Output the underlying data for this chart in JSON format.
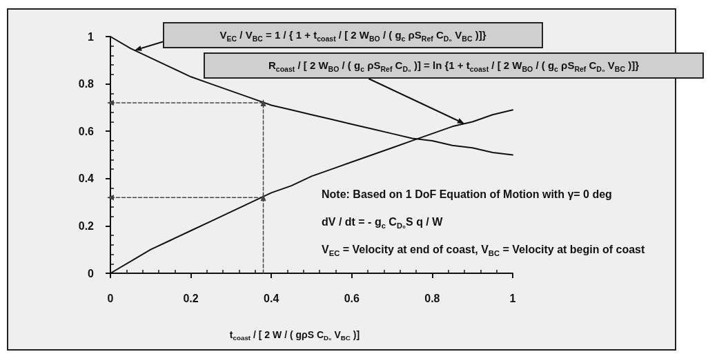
{
  "chart_data": {
    "type": "line",
    "xlabel": "t$_{coast}$ / [ 2 W / ( gρS C$_{D₀}$ V$_{BC}$ )]",
    "xlim": [
      0,
      1
    ],
    "ylim": [
      0,
      1
    ],
    "xticks": [
      0,
      {
        "value": 0.04,
        "label": null
      },
      {
        "value": 0.08,
        "label": null
      },
      {
        "value": 0.12,
        "label": null
      },
      {
        "value": 0.16,
        "label": null
      },
      0.2,
      {
        "value": 0.24,
        "label": null
      },
      {
        "value": 0.28,
        "label": null
      },
      {
        "value": 0.32,
        "label": null
      },
      {
        "value": 0.36,
        "label": null
      },
      0.4,
      {
        "value": 0.44,
        "label": null
      },
      {
        "value": 0.48,
        "label": null
      },
      {
        "value": 0.52,
        "label": null
      },
      {
        "value": 0.56,
        "label": null
      },
      0.6,
      {
        "value": 0.64,
        "label": null
      },
      {
        "value": 0.68,
        "label": null
      },
      {
        "value": 0.72,
        "label": null
      },
      {
        "value": 0.76,
        "label": null
      },
      0.8,
      {
        "value": 0.84,
        "label": null
      },
      {
        "value": 0.88,
        "label": null
      },
      {
        "value": 0.92,
        "label": null
      },
      {
        "value": 0.96,
        "label": null
      },
      1
    ],
    "yticks": [
      0,
      {
        "value": 0.04,
        "label": null
      },
      {
        "value": 0.08,
        "label": null
      },
      {
        "value": 0.12,
        "label": null
      },
      {
        "value": 0.16,
        "label": null
      },
      0.2,
      {
        "value": 0.24,
        "label": null
      },
      {
        "value": 0.28,
        "label": null
      },
      {
        "value": 0.32,
        "label": null
      },
      {
        "value": 0.36,
        "label": null
      },
      0.4,
      {
        "value": 0.44,
        "label": null
      },
      {
        "value": 0.48,
        "label": null
      },
      {
        "value": 0.52,
        "label": null
      },
      {
        "value": 0.56,
        "label": null
      },
      0.6,
      {
        "value": 0.64,
        "label": null
      },
      {
        "value": 0.68,
        "label": null
      },
      {
        "value": 0.72,
        "label": null
      },
      {
        "value": 0.76,
        "label": null
      },
      0.8,
      {
        "value": 0.84,
        "label": null
      },
      {
        "value": 0.88,
        "label": null
      },
      {
        "value": 0.92,
        "label": null
      },
      {
        "value": 0.96,
        "label": null
      },
      1
    ],
    "marker": "none",
    "line_style": "solid",
    "series": [
      {
        "name": "V$_{EC}$ / V$_{BC}$ = 1 / { 1 + t$_{coast}$ / [ 2 W$_{BO}$ / ( g$_{c}$ ρS$_{Ref}$ C$_{D₀}$ V$_{BC}$ )]}",
        "color": "#111111",
        "x": [
          0,
          0.05,
          0.1,
          0.15,
          0.2,
          0.25,
          0.3,
          0.35,
          0.4,
          0.45,
          0.5,
          0.55,
          0.6,
          0.65,
          0.7,
          0.75,
          0.8,
          0.85,
          0.9,
          0.95,
          1
        ],
        "values": [
          1,
          0.95,
          0.91,
          0.87,
          0.83,
          0.8,
          0.77,
          0.74,
          0.71,
          0.69,
          0.67,
          0.65,
          0.63,
          0.61,
          0.59,
          0.57,
          0.56,
          0.54,
          0.53,
          0.51,
          0.5
        ]
      },
      {
        "name": "R$_{coast}$ / [ 2 W$_{BO}$ / ( g$_{c}$ ρS$_{Ref}$ C$_{D₀}$ )] = ln {1 + t$_{coast}$ / [ 2 W$_{BO}$ / ( g$_{c}$ ρS$_{Ref}$ C$_{D₀}$ V$_{BC}$ )]}",
        "color": "#111111",
        "x": [
          0,
          0.05,
          0.1,
          0.15,
          0.2,
          0.25,
          0.3,
          0.35,
          0.4,
          0.45,
          0.5,
          0.55,
          0.6,
          0.65,
          0.7,
          0.75,
          0.8,
          0.85,
          0.9,
          0.95,
          1
        ],
        "values": [
          0,
          0.05,
          0.1,
          0.14,
          0.18,
          0.22,
          0.26,
          0.3,
          0.34,
          0.37,
          0.41,
          0.44,
          0.47,
          0.5,
          0.53,
          0.56,
          0.59,
          0.62,
          0.64,
          0.67,
          0.69
        ]
      },
      {
        "color": "#444444",
        "x": [
          0.38,
          0.38,
          0.38
        ],
        "values": [
          0,
          0.32,
          0.72
        ],
        "line_style": "dashed"
      },
      {
        "color": "#444444",
        "x": [
          0.38,
          0
        ],
        "values": [
          0.72,
          0.72
        ],
        "line_style": "dashed"
      },
      {
        "color": "#444444",
        "x": [
          0.38,
          0
        ],
        "values": [
          0.32,
          0.32
        ],
        "line_style": "dashed"
      },
      {
        "type": "scatter",
        "color": "#444444",
        "x": [
          0.38,
          0.38,
          0,
          0
        ],
        "values": [
          0.32,
          0.72,
          0.72,
          0.32
        ],
        "marker": "triangle"
      }
    ],
    "annotations": [
      "Note: Based on 1 DoF Equation of Motion with γ= 0 deg",
      "dV / dt = - g$_{c}$ C$_{D₀}$S q / W",
      "V$_{EC}$ = Velocity at end of coast, V$_{BC}$ = Velocity at begin of coast"
    ]
  }
}
